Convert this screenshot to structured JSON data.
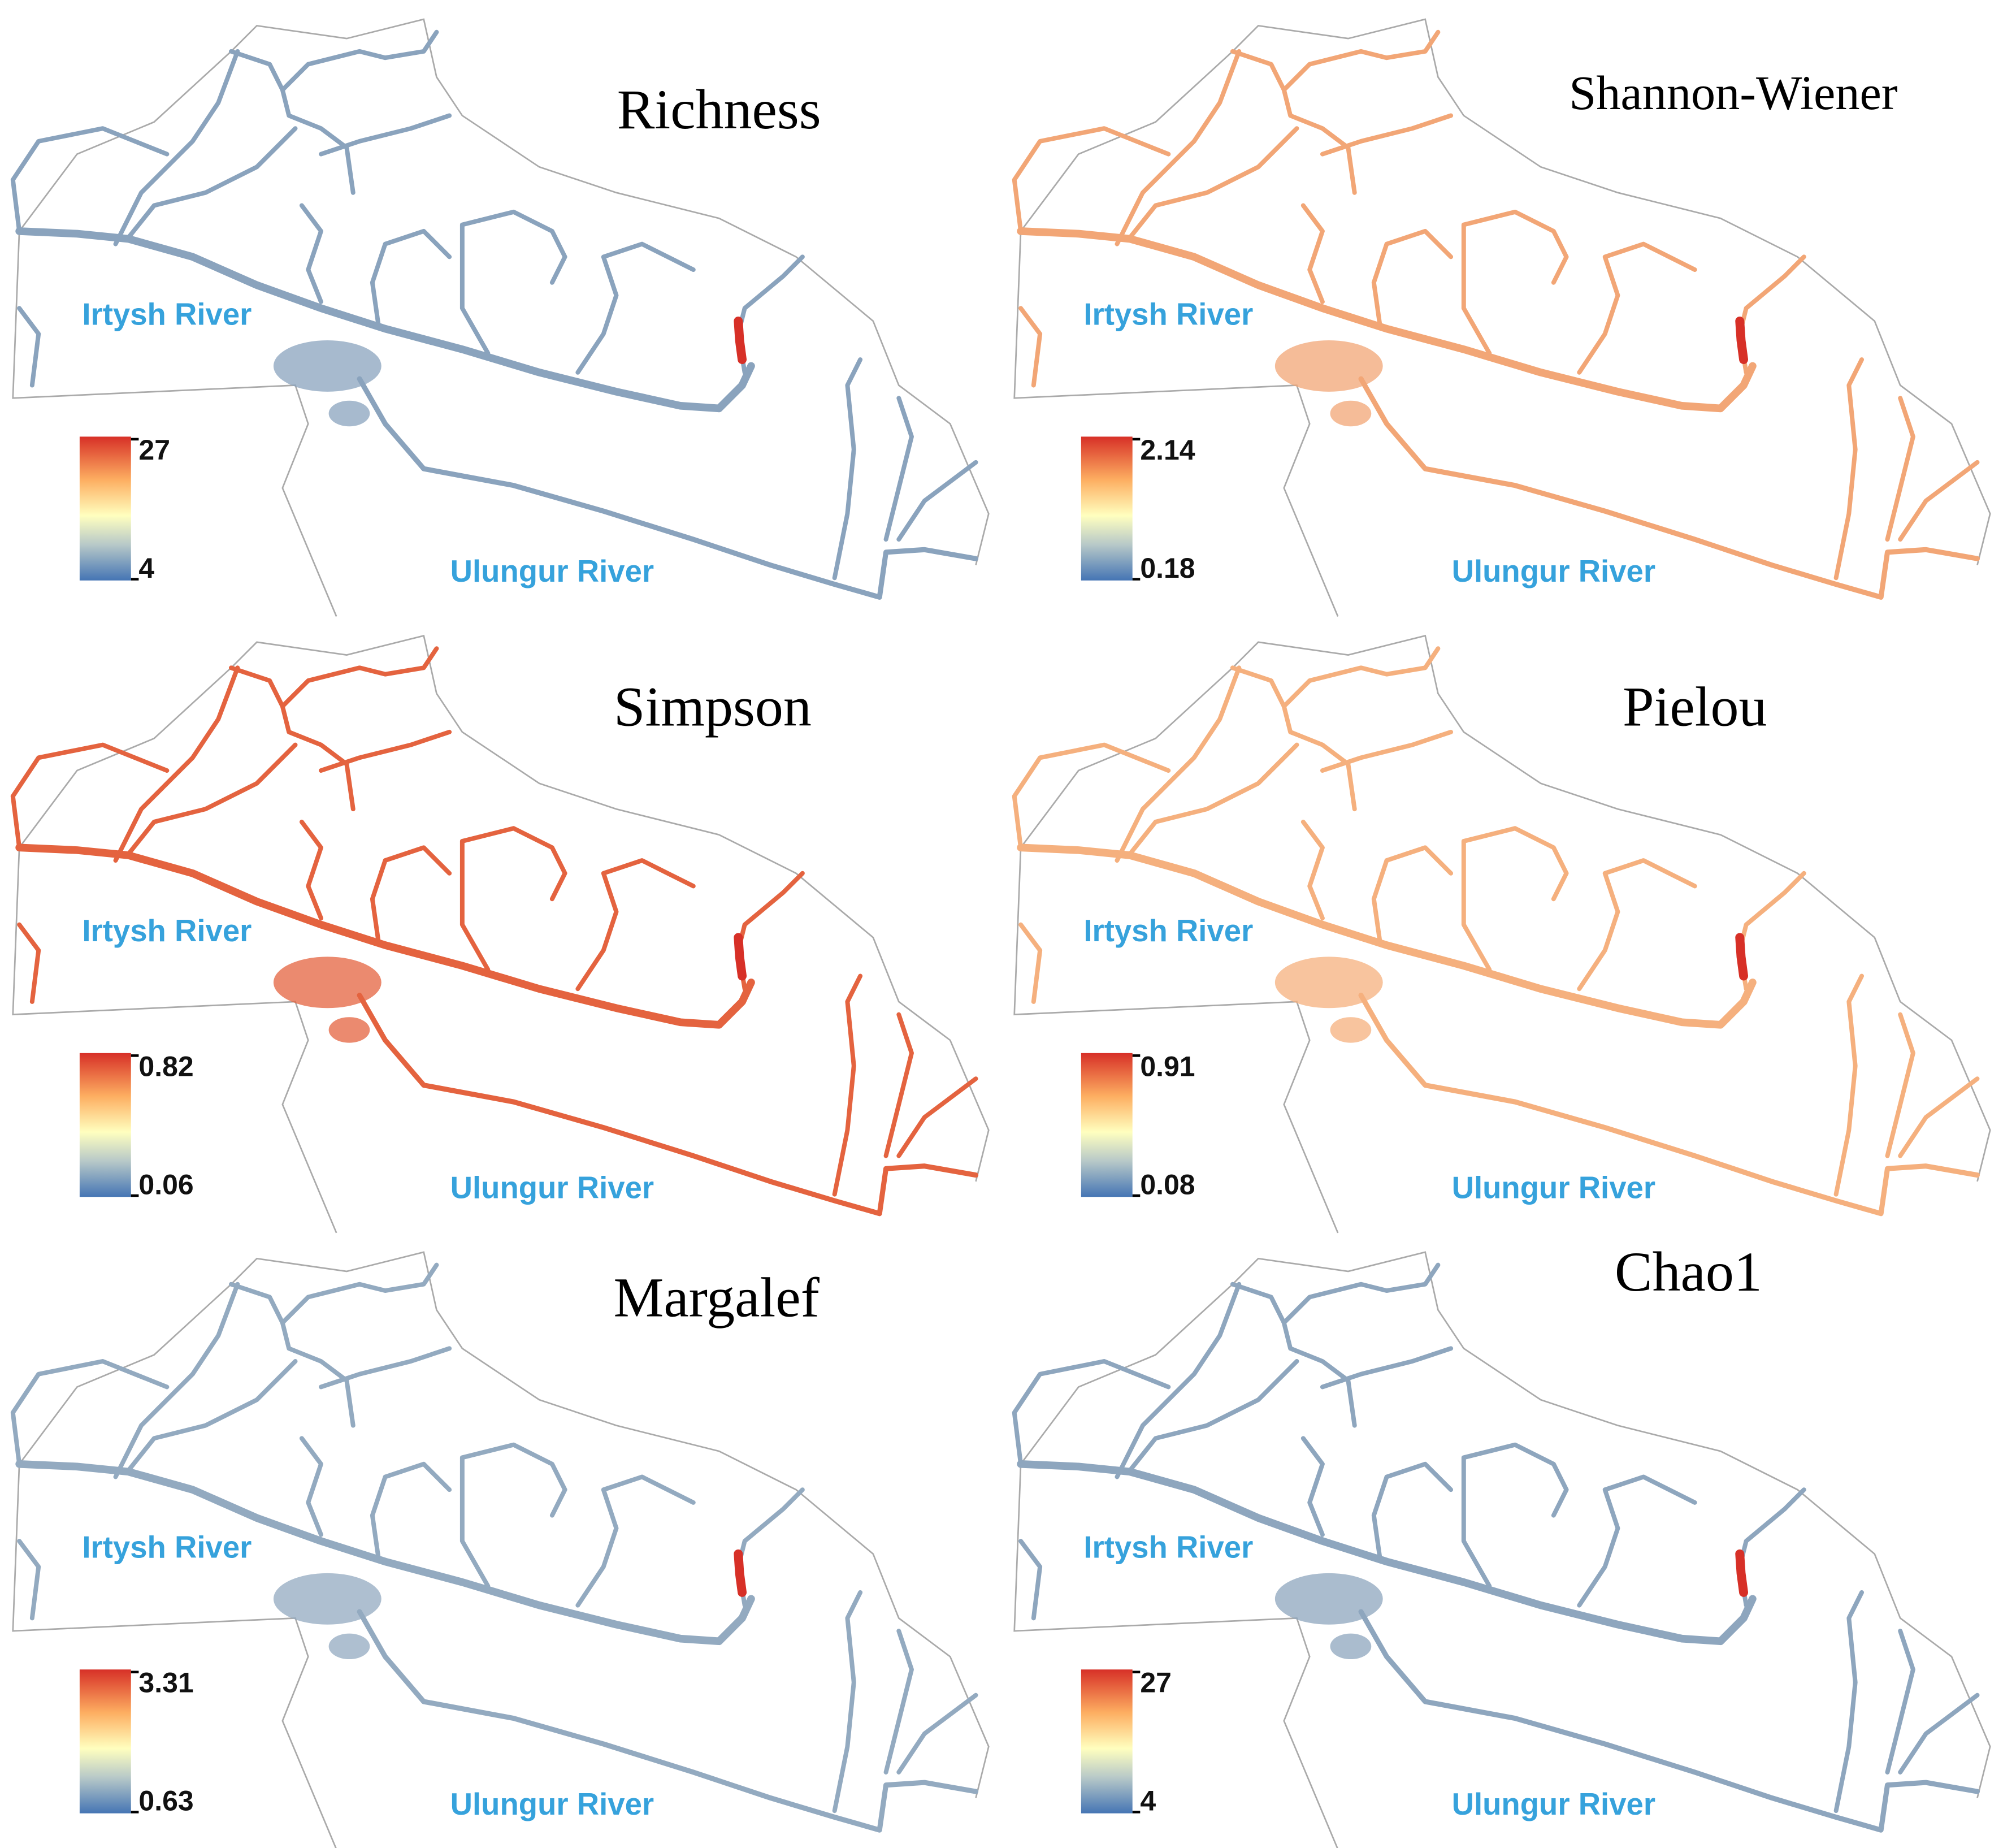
{
  "panels": [
    {
      "title": "Richness",
      "irtysh_label": "Irtysh River",
      "ulungur_label": "Ulungur River",
      "legend": {
        "max": 27,
        "min": 4
      },
      "color": "#8aa3bd"
    },
    {
      "title": "Shannon-Wiener",
      "irtysh_label": "Irtysh River",
      "ulungur_label": "Ulungur River",
      "legend": {
        "max": 2.14,
        "min": 0.18
      },
      "color": "#f2a676"
    },
    {
      "title": "Simpson",
      "irtysh_label": "Irtysh River",
      "ulungur_label": "Ulungur River",
      "legend": {
        "max": 0.82,
        "min": 0.06
      },
      "color": "#e4633f"
    },
    {
      "title": "Pielou",
      "irtysh_label": "Irtysh River",
      "ulungur_label": "Ulungur River",
      "legend": {
        "max": 0.91,
        "min": 0.08
      },
      "color": "#f5b07e"
    },
    {
      "title": "Margalef",
      "irtysh_label": "Irtysh River",
      "ulungur_label": "Ulungur River",
      "legend": {
        "max": 3.31,
        "min": 0.63
      },
      "color": "#93aac0"
    },
    {
      "title": "Chao1",
      "irtysh_label": "Irtysh River",
      "ulungur_label": "Ulungur River",
      "legend": {
        "max": 27,
        "min": 4
      },
      "color": "#8ea6be"
    }
  ]
}
